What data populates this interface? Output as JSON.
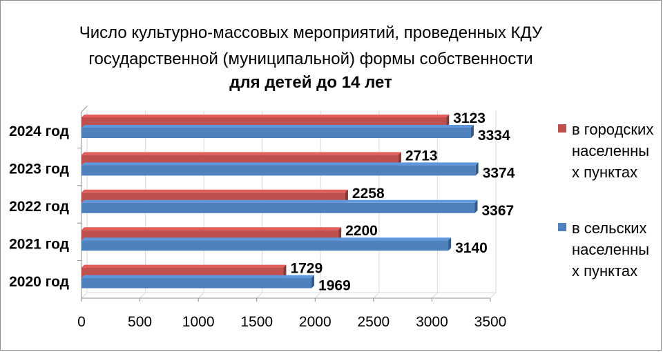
{
  "chart_data": {
    "type": "bar",
    "orientation": "horizontal",
    "title_lines": [
      "Число культурно-массовых мероприятий, проведенных КДУ",
      "государственной (муниципальной) формы собственности",
      "для детей до 14 лет"
    ],
    "categories": [
      "2024 год",
      "2023 год",
      "2022 год",
      "2021 год",
      "2020 год"
    ],
    "series": [
      {
        "name": "в городских населенных пунктах",
        "color": "#c0504d",
        "values": [
          3123,
          2713,
          2258,
          2200,
          1729
        ]
      },
      {
        "name": "в сельских населенных пунктах",
        "color": "#4f81bd",
        "values": [
          3334,
          3374,
          3367,
          3140,
          1969
        ]
      }
    ],
    "xlim": [
      0,
      3500
    ],
    "x_ticks": [
      "0",
      "500",
      "1000",
      "1500",
      "2000",
      "2500",
      "3000",
      "3500"
    ],
    "grid": true,
    "legend_position": "right",
    "legend_lines": [
      [
        "в городских",
        "населенны",
        "х пунктах"
      ],
      [
        "в сельских",
        "населенны",
        "х пунктах"
      ]
    ]
  }
}
